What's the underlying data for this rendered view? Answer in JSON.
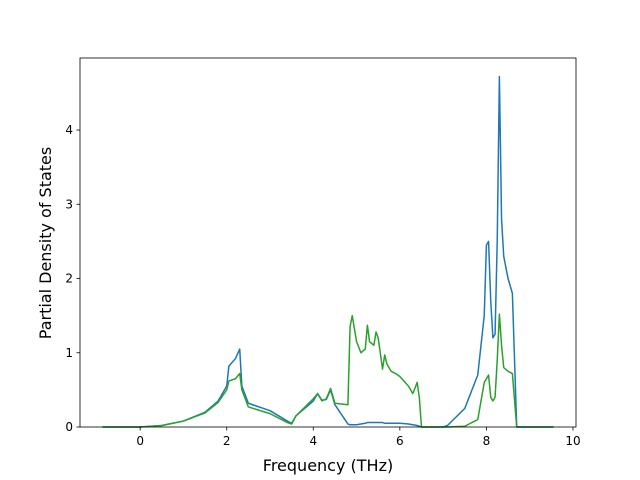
{
  "chart_data": {
    "type": "line",
    "xlabel": "Frequency (THz)",
    "ylabel": "Partial Density of States",
    "x": [
      -0.87,
      0,
      0.5,
      1.0,
      1.5,
      1.8,
      2.0,
      2.05,
      2.2,
      2.3,
      2.35,
      2.5,
      3.0,
      3.4,
      3.5,
      3.6,
      4.0,
      4.1,
      4.2,
      4.3,
      4.4,
      4.5,
      4.8,
      4.85,
      4.9,
      5.0,
      5.1,
      5.2,
      5.25,
      5.3,
      5.4,
      5.45,
      5.5,
      5.6,
      5.65,
      5.7,
      5.8,
      5.9,
      6.0,
      6.2,
      6.3,
      6.4,
      6.45,
      6.5,
      7.0,
      7.1,
      7.5,
      7.8,
      7.95,
      8.0,
      8.05,
      8.1,
      8.15,
      8.2,
      8.25,
      8.3,
      8.35,
      8.4,
      8.5,
      8.6,
      8.7,
      9.55
    ],
    "series": [
      {
        "color": "#1f77b4",
        "values": [
          0,
          0,
          0.02,
          0.08,
          0.2,
          0.35,
          0.55,
          0.82,
          0.92,
          1.05,
          0.55,
          0.32,
          0.22,
          0.08,
          0.05,
          0.15,
          0.35,
          0.45,
          0.36,
          0.37,
          0.5,
          0.3,
          0.04,
          0.03,
          0.03,
          0.03,
          0.04,
          0.05,
          0.06,
          0.06,
          0.06,
          0.06,
          0.06,
          0.06,
          0.05,
          0.05,
          0.05,
          0.05,
          0.05,
          0.04,
          0.03,
          0.02,
          0.01,
          0,
          0,
          0.02,
          0.25,
          0.7,
          1.5,
          2.45,
          2.5,
          1.7,
          1.2,
          1.25,
          2.5,
          4.72,
          2.8,
          2.3,
          2.0,
          1.8,
          0,
          0
        ]
      },
      {
        "color": "#2ca02c",
        "values": [
          0,
          0,
          0.02,
          0.08,
          0.19,
          0.33,
          0.5,
          0.62,
          0.65,
          0.72,
          0.5,
          0.27,
          0.18,
          0.06,
          0.04,
          0.15,
          0.38,
          0.45,
          0.35,
          0.38,
          0.52,
          0.32,
          0.3,
          1.35,
          1.5,
          1.15,
          1.0,
          1.05,
          1.37,
          1.15,
          1.1,
          1.28,
          1.2,
          0.78,
          0.97,
          0.85,
          0.75,
          0.72,
          0.68,
          0.55,
          0.45,
          0.6,
          0.4,
          0,
          0,
          0,
          0.01,
          0.1,
          0.6,
          0.65,
          0.7,
          0.4,
          0.35,
          0.4,
          0.9,
          1.52,
          1.1,
          0.8,
          0.75,
          0.72,
          0,
          0
        ]
      }
    ],
    "xlim": [
      -1.39,
      10.07
    ],
    "ylim": [
      0,
      4.97
    ],
    "xticks": [
      0,
      2,
      4,
      6,
      8,
      10
    ],
    "yticks": [
      0,
      1,
      2,
      3,
      4
    ]
  }
}
